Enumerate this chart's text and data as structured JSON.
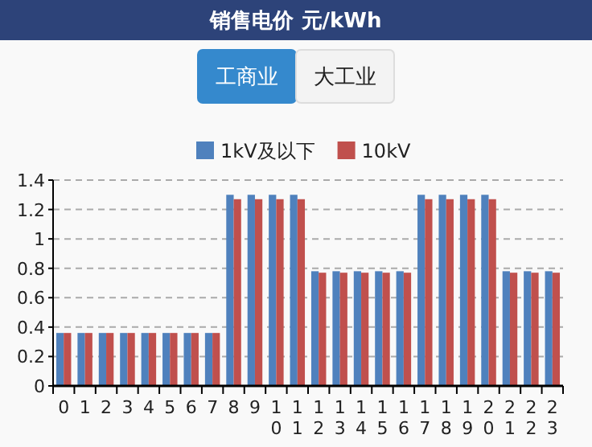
{
  "chart_data": {
    "type": "bar",
    "title": "销售电价 元/kWh",
    "annotations": [
      "工商业",
      "大工业"
    ],
    "categories": [
      "0",
      "1",
      "2",
      "3",
      "4",
      "5",
      "6",
      "7",
      "8",
      "9",
      "10",
      "11",
      "12",
      "13",
      "14",
      "15",
      "16",
      "17",
      "18",
      "19",
      "20",
      "21",
      "22",
      "23"
    ],
    "series": [
      {
        "name": "1kV及以下",
        "color": "#4f81bd",
        "values": [
          0.36,
          0.36,
          0.36,
          0.36,
          0.36,
          0.36,
          0.36,
          0.36,
          1.3,
          1.3,
          1.3,
          1.3,
          0.78,
          0.78,
          0.78,
          0.78,
          0.78,
          1.3,
          1.3,
          1.3,
          1.3,
          0.78,
          0.78,
          0.78
        ]
      },
      {
        "name": "10kV",
        "color": "#c0504d",
        "values": [
          0.36,
          0.36,
          0.36,
          0.36,
          0.36,
          0.36,
          0.36,
          0.36,
          1.27,
          1.27,
          1.27,
          1.27,
          0.77,
          0.77,
          0.77,
          0.77,
          0.77,
          1.27,
          1.27,
          1.27,
          1.27,
          0.77,
          0.77,
          0.77
        ]
      }
    ],
    "ylim": [
      0,
      1.4
    ],
    "yticks": [
      0,
      0.2,
      0.4,
      0.6,
      0.8,
      1,
      1.2,
      1.4
    ],
    "grid": "y",
    "legend": "top"
  }
}
